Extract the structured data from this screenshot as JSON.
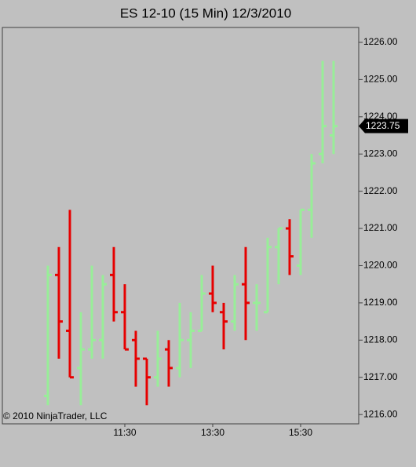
{
  "chart_data": {
    "type": "ohlc",
    "title": "ES 12-10 (15 Min)  12/3/2010",
    "categories": [
      null,
      null,
      null,
      null,
      null,
      null,
      null,
      "11:30",
      null,
      null,
      null,
      null,
      null,
      null,
      null,
      "13:30",
      null,
      null,
      null,
      null,
      null,
      null,
      null,
      "15:30",
      null,
      null,
      null
    ],
    "open": [
      1216.5,
      1219.75,
      1218.25,
      1217.25,
      1217.75,
      1218.0,
      1219.75,
      1218.75,
      1218.0,
      1217.5,
      1217.0,
      1217.75,
      1217.25,
      1218.0,
      1218.25,
      1219.25,
      1218.75,
      1218.5,
      1219.5,
      1219.0,
      1218.75,
      1220.5,
      1221.0,
      1220.0,
      1221.5,
      1223.0,
      1223.5
    ],
    "high": [
      1220.0,
      1220.5,
      1221.5,
      1218.75,
      1220.0,
      1219.75,
      1220.5,
      1219.5,
      1218.25,
      1217.5,
      1218.25,
      1218.0,
      1219.0,
      1218.75,
      1219.75,
      1220.0,
      1219.0,
      1219.75,
      1220.5,
      1219.5,
      1220.75,
      1221.0,
      1221.25,
      1221.5,
      1223.0,
      1225.5,
      1225.5
    ],
    "low": [
      1216.25,
      1217.5,
      1217.0,
      1216.25,
      1217.5,
      1217.5,
      1218.5,
      1217.75,
      1216.75,
      1216.25,
      1216.75,
      1216.75,
      1217.0,
      1217.25,
      1218.25,
      1218.75,
      1217.75,
      1218.25,
      1218.0,
      1218.25,
      1218.75,
      1219.5,
      1219.75,
      1219.75,
      1220.75,
      1222.75,
      1223.0
    ],
    "close": [
      1219.75,
      1218.5,
      1217.0,
      1217.75,
      1218.0,
      1219.5,
      1218.75,
      1217.75,
      1217.5,
      1217.0,
      1217.5,
      1217.25,
      1218.0,
      1218.25,
      1219.25,
      1219.0,
      1218.5,
      1219.5,
      1219.0,
      1219.0,
      1220.5,
      1221.0,
      1220.25,
      1221.5,
      1222.75,
      1223.75,
      1223.75
    ],
    "up_color": "#98ee98",
    "down_color": "#e60000",
    "ylim": [
      1215.75,
      1226.4
    ],
    "yticks": [
      {
        "value": 1216,
        "label": "1216.00"
      },
      {
        "value": 1217,
        "label": "1217.00"
      },
      {
        "value": 1218,
        "label": "1218.00"
      },
      {
        "value": 1219,
        "label": "1219.00"
      },
      {
        "value": 1220,
        "label": "1220.00"
      },
      {
        "value": 1221,
        "label": "1221.00"
      },
      {
        "value": 1222,
        "label": "1222.00"
      },
      {
        "value": 1223,
        "label": "1223.00"
      },
      {
        "value": 1224,
        "label": "1224.00"
      },
      {
        "value": 1225,
        "label": "1225.00"
      },
      {
        "value": 1226,
        "label": "1226.00"
      }
    ],
    "last_price": 1223.75,
    "copyright": "© 2010 NinjaTrader, LLC"
  }
}
